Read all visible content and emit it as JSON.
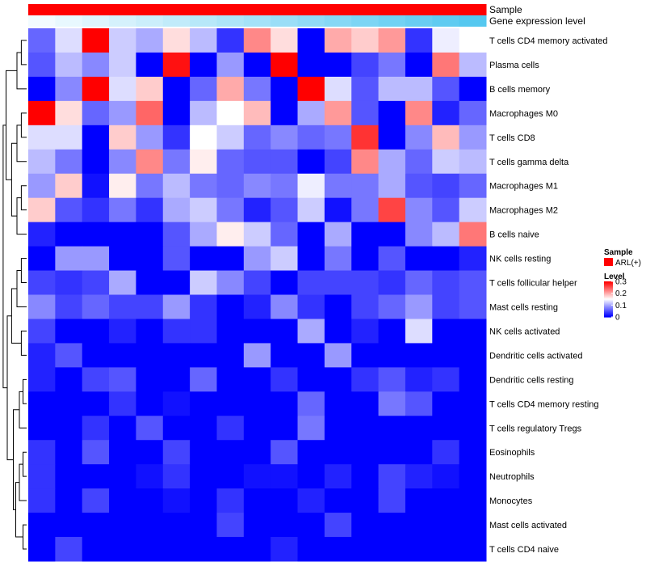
{
  "chart_data": {
    "type": "heatmap",
    "annotations": [
      {
        "name": "Sample",
        "type": "categorical",
        "values": [
          "ARL(+)"
        ],
        "colors": [
          "#ff0000"
        ]
      },
      {
        "name": "Gene expression level",
        "type": "gradient",
        "colors": [
          "#f2fbff",
          "#55c8f0"
        ]
      }
    ],
    "rows": [
      "T cells CD4 memory activated",
      "Plasma cells",
      "B cells memory",
      "Macrophages M0",
      "T cells CD8",
      "T cells gamma delta",
      "Macrophages M1",
      "Macrophages M2",
      "B cells naive",
      "NK cells resting",
      "T cells follicular helper",
      "Mast cells resting",
      "NK cells activated",
      "Dendritic cells activated",
      "Dendritic cells resting",
      "T cells CD4 memory resting",
      "T cells regulatory  Tregs",
      "Eosinophils",
      "Neutrophils",
      "Monocytes",
      "Mast cells activated",
      "T cells CD4 naive"
    ],
    "columns": 17,
    "values": [
      [
        0.06,
        0.13,
        0.3,
        0.12,
        0.1,
        0.17,
        0.11,
        0.03,
        0.22,
        0.17,
        0.0,
        0.2,
        0.18,
        0.21,
        0.03,
        0.14,
        0.15
      ],
      [
        0.05,
        0.11,
        0.08,
        0.12,
        0.0,
        0.29,
        0.0,
        0.09,
        0.0,
        0.3,
        0.0,
        0.0,
        0.04,
        0.07,
        0.0,
        0.23,
        0.11
      ],
      [
        0.0,
        0.08,
        0.3,
        0.13,
        0.18,
        0.0,
        0.06,
        0.2,
        0.07,
        0.0,
        0.3,
        0.13,
        0.05,
        0.11,
        0.11,
        0.05,
        0.0
      ],
      [
        0.3,
        0.17,
        0.06,
        0.09,
        0.24,
        0.0,
        0.11,
        0.15,
        0.19,
        0.0,
        0.1,
        0.21,
        0.05,
        0.0,
        0.22,
        0.02,
        0.06
      ],
      [
        0.13,
        0.13,
        0.0,
        0.18,
        0.09,
        0.03,
        0.15,
        0.12,
        0.06,
        0.08,
        0.06,
        0.07,
        0.27,
        0.0,
        0.08,
        0.19,
        0.09
      ],
      [
        0.11,
        0.07,
        0.0,
        0.08,
        0.22,
        0.07,
        0.16,
        0.06,
        0.05,
        0.05,
        0.0,
        0.04,
        0.22,
        0.1,
        0.06,
        0.12,
        0.11
      ],
      [
        0.09,
        0.18,
        0.01,
        0.16,
        0.07,
        0.11,
        0.07,
        0.06,
        0.08,
        0.07,
        0.14,
        0.07,
        0.07,
        0.1,
        0.05,
        0.04,
        0.06
      ],
      [
        0.18,
        0.05,
        0.03,
        0.07,
        0.03,
        0.1,
        0.12,
        0.07,
        0.02,
        0.05,
        0.12,
        0.01,
        0.07,
        0.26,
        0.08,
        0.05,
        0.12
      ],
      [
        0.02,
        0.0,
        0.0,
        0.0,
        0.0,
        0.05,
        0.1,
        0.16,
        0.12,
        0.06,
        0.0,
        0.1,
        0.0,
        0.0,
        0.08,
        0.11,
        0.23
      ],
      [
        0.0,
        0.09,
        0.09,
        0.0,
        0.0,
        0.05,
        0.0,
        0.0,
        0.09,
        0.12,
        0.0,
        0.07,
        0.0,
        0.05,
        0.0,
        0.0,
        0.02
      ],
      [
        0.04,
        0.03,
        0.04,
        0.1,
        0.0,
        0.0,
        0.12,
        0.08,
        0.04,
        0.0,
        0.04,
        0.04,
        0.04,
        0.03,
        0.06,
        0.04,
        0.05
      ],
      [
        0.08,
        0.04,
        0.06,
        0.04,
        0.04,
        0.09,
        0.03,
        0.0,
        0.02,
        0.08,
        0.03,
        0.0,
        0.04,
        0.06,
        0.09,
        0.04,
        0.05
      ],
      [
        0.04,
        0.0,
        0.0,
        0.02,
        0.0,
        0.03,
        0.03,
        0.0,
        0.0,
        0.0,
        0.1,
        0.0,
        0.02,
        0.0,
        0.13,
        0.0,
        0.0
      ],
      [
        0.02,
        0.05,
        0.0,
        0.0,
        0.0,
        0.0,
        0.0,
        0.0,
        0.09,
        0.0,
        0.0,
        0.09,
        0.0,
        0.0,
        0.0,
        0.0,
        0.0
      ],
      [
        0.02,
        0.0,
        0.04,
        0.05,
        0.0,
        0.0,
        0.06,
        0.0,
        0.0,
        0.03,
        0.0,
        0.0,
        0.03,
        0.05,
        0.02,
        0.03,
        0.0
      ],
      [
        0.0,
        0.0,
        0.0,
        0.03,
        0.0,
        0.01,
        0.0,
        0.0,
        0.0,
        0.0,
        0.06,
        0.0,
        0.0,
        0.07,
        0.05,
        0.0,
        0.0
      ],
      [
        0.0,
        0.0,
        0.03,
        0.0,
        0.05,
        0.0,
        0.0,
        0.03,
        0.0,
        0.0,
        0.07,
        0.0,
        0.0,
        0.0,
        0.0,
        0.0,
        0.0
      ],
      [
        0.03,
        0.0,
        0.05,
        0.0,
        0.0,
        0.04,
        0.0,
        0.0,
        0.0,
        0.05,
        0.0,
        0.0,
        0.0,
        0.0,
        0.0,
        0.03,
        0.0
      ],
      [
        0.03,
        0.0,
        0.0,
        0.0,
        0.01,
        0.03,
        0.0,
        0.0,
        0.01,
        0.01,
        0.0,
        0.02,
        0.0,
        0.04,
        0.02,
        0.01,
        0.0
      ],
      [
        0.03,
        0.0,
        0.04,
        0.0,
        0.0,
        0.01,
        0.0,
        0.03,
        0.0,
        0.0,
        0.02,
        0.0,
        0.0,
        0.04,
        0.0,
        0.0,
        0.0
      ],
      [
        0.0,
        0.0,
        0.0,
        0.0,
        0.0,
        0.0,
        0.0,
        0.04,
        0.0,
        0.0,
        0.0,
        0.04,
        0.0,
        0.0,
        0.0,
        0.0,
        0.0
      ],
      [
        0.0,
        0.04,
        0.0,
        0.0,
        0.0,
        0.0,
        0.0,
        0.0,
        0.0,
        0.02,
        0.0,
        0.0,
        0.0,
        0.0,
        0.0,
        0.0,
        0.0
      ]
    ],
    "color_scale": {
      "name": "Level",
      "stops": [
        {
          "value": 0,
          "color": "#0000ff"
        },
        {
          "value": 0.15,
          "color": "#ffffff"
        },
        {
          "value": 0.3,
          "color": "#ff0000"
        }
      ],
      "ticks": [
        "0.3",
        "0.2",
        "0.1",
        "0"
      ]
    },
    "legend": {
      "sample_title": "Sample",
      "sample_label": "ARL(+)",
      "level_title": "Level"
    },
    "dendrogram": "row"
  }
}
